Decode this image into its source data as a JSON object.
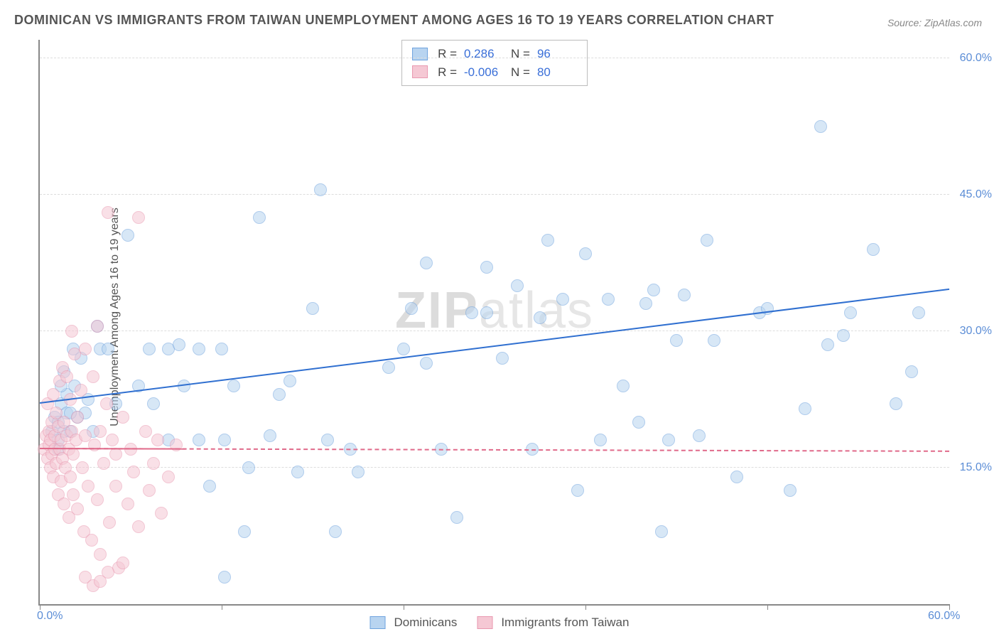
{
  "title": "DOMINICAN VS IMMIGRANTS FROM TAIWAN UNEMPLOYMENT AMONG AGES 16 TO 19 YEARS CORRELATION CHART",
  "source": "Source: ZipAtlas.com",
  "ylabel": "Unemployment Among Ages 16 to 19 years",
  "watermark_bold": "ZIP",
  "watermark_thin": "atlas",
  "chart": {
    "type": "scatter",
    "xlim": [
      0,
      60
    ],
    "ylim": [
      0,
      62
    ],
    "xtick_labels": [
      {
        "pos": 0,
        "text": "0.0%"
      },
      {
        "pos": 60,
        "text": "60.0%"
      }
    ],
    "xtick_marks": [
      0,
      12,
      24,
      36,
      48,
      60
    ],
    "ytick_labels": [
      {
        "pos": 15,
        "text": "15.0%"
      },
      {
        "pos": 30,
        "text": "30.0%"
      },
      {
        "pos": 45,
        "text": "45.0%"
      },
      {
        "pos": 60,
        "text": "60.0%"
      }
    ],
    "grid_y": [
      15,
      30,
      45,
      60
    ],
    "grid_color": "#dddddd",
    "background_color": "#ffffff",
    "axis_color": "#888888",
    "tick_label_color": "#5b8dd6",
    "marker_radius": 9,
    "marker_opacity": 0.55,
    "series": [
      {
        "name": "Dominicans",
        "label": "Dominicans",
        "fill_color": "#b8d4f0",
        "stroke_color": "#6fa3de",
        "trend_color": "#2f6fd0",
        "trend_width": 2.5,
        "trend_dash": "solid",
        "trend_y_start": 22.0,
        "trend_y_end": 34.5,
        "R": "0.286",
        "N": "96",
        "points": [
          [
            0.8,
            19.0
          ],
          [
            1.0,
            20.5
          ],
          [
            1.2,
            17.0
          ],
          [
            1.4,
            22.0
          ],
          [
            1.2,
            18.0
          ],
          [
            1.6,
            25.5
          ],
          [
            1.8,
            21.0
          ],
          [
            2.0,
            19.0
          ],
          [
            2.2,
            28.0
          ],
          [
            1.8,
            23.0
          ],
          [
            2.5,
            20.5
          ],
          [
            2.7,
            27.0
          ],
          [
            3.0,
            21.0
          ],
          [
            3.2,
            22.5
          ],
          [
            3.5,
            19.0
          ],
          [
            3.8,
            30.5
          ],
          [
            4.0,
            28.0
          ],
          [
            4.5,
            28.0
          ],
          [
            5.0,
            22.0
          ],
          [
            5.8,
            40.5
          ],
          [
            6.5,
            24.0
          ],
          [
            7.2,
            28.0
          ],
          [
            7.5,
            22.0
          ],
          [
            8.5,
            28.0
          ],
          [
            8.5,
            18.0
          ],
          [
            9.2,
            28.5
          ],
          [
            9.5,
            24.0
          ],
          [
            10.5,
            28.0
          ],
          [
            10.5,
            18.0
          ],
          [
            11.2,
            13.0
          ],
          [
            12.0,
            28.0
          ],
          [
            12.2,
            18.0
          ],
          [
            12.2,
            3.0
          ],
          [
            12.8,
            24.0
          ],
          [
            13.5,
            8.0
          ],
          [
            13.8,
            15.0
          ],
          [
            14.5,
            42.5
          ],
          [
            15.2,
            18.5
          ],
          [
            15.8,
            23.0
          ],
          [
            16.5,
            24.5
          ],
          [
            17.0,
            14.5
          ],
          [
            18.5,
            45.5
          ],
          [
            18.0,
            32.5
          ],
          [
            19.0,
            18.0
          ],
          [
            19.5,
            8.0
          ],
          [
            20.5,
            17.0
          ],
          [
            21.0,
            14.5
          ],
          [
            23.0,
            26.0
          ],
          [
            24.0,
            28.0
          ],
          [
            24.5,
            32.5
          ],
          [
            25.5,
            26.5
          ],
          [
            25.5,
            37.5
          ],
          [
            26.5,
            17.0
          ],
          [
            27.5,
            9.5
          ],
          [
            28.5,
            32.0
          ],
          [
            29.5,
            37.0
          ],
          [
            29.5,
            32.0
          ],
          [
            30.5,
            27.0
          ],
          [
            31.5,
            35.0
          ],
          [
            32.5,
            17.0
          ],
          [
            33.0,
            31.5
          ],
          [
            33.5,
            40.0
          ],
          [
            34.5,
            33.5
          ],
          [
            35.5,
            12.5
          ],
          [
            36.0,
            38.5
          ],
          [
            37.0,
            18.0
          ],
          [
            37.5,
            33.5
          ],
          [
            38.5,
            24.0
          ],
          [
            39.5,
            20.0
          ],
          [
            40.0,
            33.0
          ],
          [
            40.5,
            34.5
          ],
          [
            41.0,
            8.0
          ],
          [
            41.5,
            18.0
          ],
          [
            42.0,
            29.0
          ],
          [
            42.5,
            34.0
          ],
          [
            43.5,
            18.5
          ],
          [
            44.0,
            40.0
          ],
          [
            44.5,
            29.0
          ],
          [
            46.0,
            14.0
          ],
          [
            47.5,
            32.0
          ],
          [
            48.0,
            32.5
          ],
          [
            49.5,
            12.5
          ],
          [
            50.5,
            21.5
          ],
          [
            51.5,
            52.5
          ],
          [
            52.0,
            28.5
          ],
          [
            53.0,
            29.5
          ],
          [
            53.5,
            32.0
          ],
          [
            55.0,
            39.0
          ],
          [
            56.5,
            22.0
          ],
          [
            57.5,
            25.5
          ],
          [
            58.0,
            32.0
          ],
          [
            1.2,
            20.0
          ],
          [
            1.6,
            19.0
          ],
          [
            2.0,
            21.0
          ],
          [
            2.3,
            24.0
          ],
          [
            1.4,
            24.0
          ]
        ]
      },
      {
        "name": "Immigrants from Taiwan",
        "label": "Immigrants from Taiwan",
        "fill_color": "#f5c8d4",
        "stroke_color": "#e998b0",
        "trend_color": "#e06a8a",
        "trend_width": 2,
        "trend_dash": "dashed",
        "trend_y_start": 17.0,
        "trend_y_end": 16.7,
        "R": "-0.006",
        "N": "80",
        "points": [
          [
            0.3,
            17.0
          ],
          [
            0.4,
            18.5
          ],
          [
            0.5,
            22.0
          ],
          [
            0.5,
            16.0
          ],
          [
            0.6,
            17.5
          ],
          [
            0.6,
            19.0
          ],
          [
            0.7,
            18.0
          ],
          [
            0.7,
            15.0
          ],
          [
            0.8,
            20.0
          ],
          [
            0.8,
            16.5
          ],
          [
            0.9,
            23.0
          ],
          [
            0.9,
            14.0
          ],
          [
            1.0,
            18.5
          ],
          [
            1.0,
            17.0
          ],
          [
            1.1,
            21.0
          ],
          [
            1.1,
            15.5
          ],
          [
            1.2,
            19.5
          ],
          [
            1.2,
            12.0
          ],
          [
            1.3,
            24.5
          ],
          [
            1.3,
            17.0
          ],
          [
            1.4,
            18.0
          ],
          [
            1.4,
            13.5
          ],
          [
            1.5,
            26.0
          ],
          [
            1.5,
            16.0
          ],
          [
            1.6,
            11.0
          ],
          [
            1.6,
            20.0
          ],
          [
            1.7,
            15.0
          ],
          [
            1.8,
            25.0
          ],
          [
            1.8,
            18.5
          ],
          [
            1.9,
            9.5
          ],
          [
            1.9,
            17.0
          ],
          [
            2.0,
            22.5
          ],
          [
            2.0,
            14.0
          ],
          [
            2.1,
            30.0
          ],
          [
            2.1,
            19.0
          ],
          [
            2.2,
            16.5
          ],
          [
            2.2,
            12.0
          ],
          [
            2.3,
            27.5
          ],
          [
            2.4,
            18.0
          ],
          [
            2.5,
            10.5
          ],
          [
            2.5,
            20.5
          ],
          [
            2.7,
            23.5
          ],
          [
            2.8,
            15.0
          ],
          [
            2.9,
            8.0
          ],
          [
            3.0,
            28.0
          ],
          [
            3.0,
            18.5
          ],
          [
            3.2,
            13.0
          ],
          [
            3.4,
            7.0
          ],
          [
            3.5,
            25.0
          ],
          [
            3.6,
            17.5
          ],
          [
            3.8,
            11.5
          ],
          [
            3.8,
            30.5
          ],
          [
            4.0,
            19.0
          ],
          [
            4.0,
            5.5
          ],
          [
            4.2,
            15.5
          ],
          [
            4.4,
            22.0
          ],
          [
            4.5,
            43.0
          ],
          [
            4.6,
            9.0
          ],
          [
            4.8,
            18.0
          ],
          [
            5.0,
            13.0
          ],
          [
            5.0,
            16.5
          ],
          [
            5.2,
            4.0
          ],
          [
            5.5,
            20.5
          ],
          [
            5.8,
            11.0
          ],
          [
            6.0,
            17.0
          ],
          [
            6.2,
            14.5
          ],
          [
            6.5,
            42.5
          ],
          [
            6.5,
            8.5
          ],
          [
            7.0,
            19.0
          ],
          [
            7.2,
            12.5
          ],
          [
            7.5,
            15.5
          ],
          [
            7.8,
            18.0
          ],
          [
            8.0,
            10.0
          ],
          [
            8.5,
            14.0
          ],
          [
            9.0,
            17.5
          ],
          [
            3.0,
            3.0
          ],
          [
            3.5,
            2.0
          ],
          [
            4.0,
            2.5
          ],
          [
            4.5,
            3.5
          ],
          [
            5.5,
            4.5
          ]
        ]
      }
    ]
  },
  "stats_labels": {
    "R": "R =",
    "N": "N ="
  },
  "legend": {
    "series1": "Dominicans",
    "series2": "Immigrants from Taiwan"
  }
}
